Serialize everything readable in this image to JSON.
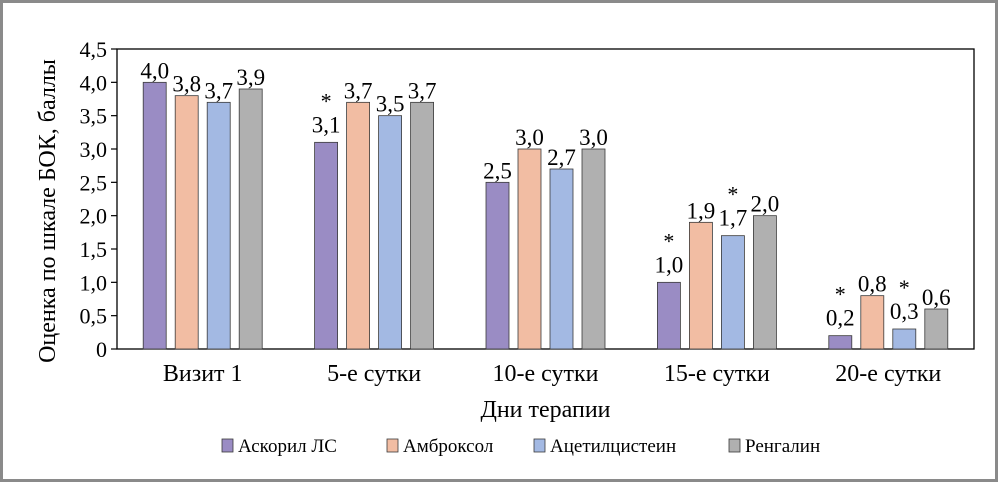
{
  "chart_data": {
    "type": "bar",
    "title": "",
    "xlabel": "Дни терапии",
    "ylabel": "Оценка по шкале БОК, баллы",
    "ylim": [
      0,
      4.5
    ],
    "yticks": [
      {
        "value": 0,
        "label": "0"
      },
      {
        "value": 0.5,
        "label": "0,5"
      },
      {
        "value": 1.0,
        "label": "1,0"
      },
      {
        "value": 1.5,
        "label": "1,5"
      },
      {
        "value": 2.0,
        "label": "2,0"
      },
      {
        "value": 2.5,
        "label": "2,5"
      },
      {
        "value": 3.0,
        "label": "3,0"
      },
      {
        "value": 3.5,
        "label": "3,5"
      },
      {
        "value": 4.0,
        "label": "4,0"
      },
      {
        "value": 4.5,
        "label": "4,5"
      }
    ],
    "grid": false,
    "legend_position": "bottom",
    "categories": [
      "Визит 1",
      "5-е сутки",
      "10-е сутки",
      "15-е сутки",
      "20-е сутки"
    ],
    "series": [
      {
        "name": "Аскорил ЛС",
        "color": "#9a8cc4",
        "values": [
          4.0,
          3.1,
          2.5,
          1.0,
          0.2
        ],
        "labels": [
          "4,0",
          "3,1",
          "2,5",
          "1,0",
          "0,2"
        ],
        "significant": [
          false,
          true,
          false,
          true,
          true
        ]
      },
      {
        "name": "Амброксол",
        "color": "#f2bda3",
        "values": [
          3.8,
          3.7,
          3.0,
          1.9,
          0.8
        ],
        "labels": [
          "3,8",
          "3,7",
          "3,0",
          "1,9",
          "0,8"
        ],
        "significant": [
          false,
          false,
          false,
          false,
          false
        ]
      },
      {
        "name": "Ацетилцистеин",
        "color": "#a3b9e3",
        "values": [
          3.7,
          3.5,
          2.7,
          1.7,
          0.3
        ],
        "labels": [
          "3,7",
          "3,5",
          "2,7",
          "1,7",
          "0,3"
        ],
        "significant": [
          false,
          false,
          false,
          true,
          true
        ]
      },
      {
        "name": "Ренгалин",
        "color": "#b0b0b0",
        "values": [
          3.9,
          3.7,
          3.0,
          2.0,
          0.6
        ],
        "labels": [
          "3,9",
          "3,7",
          "3,0",
          "2,0",
          "0,6"
        ],
        "significant": [
          false,
          false,
          false,
          false,
          false
        ]
      }
    ],
    "significance_marker": "*"
  }
}
